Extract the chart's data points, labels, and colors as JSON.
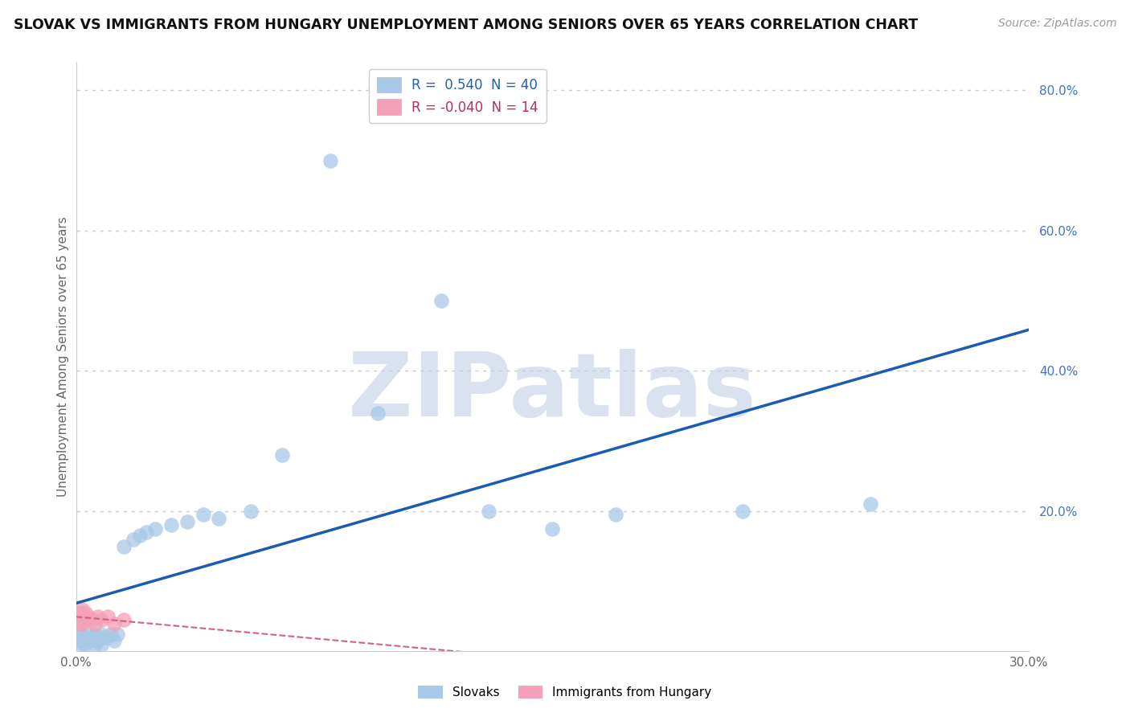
{
  "title": "SLOVAK VS IMMIGRANTS FROM HUNGARY UNEMPLOYMENT AMONG SENIORS OVER 65 YEARS CORRELATION CHART",
  "source": "Source: ZipAtlas.com",
  "ylabel": "Unemployment Among Seniors over 65 years",
  "xlim": [
    0.0,
    0.3
  ],
  "ylim": [
    0.0,
    0.84
  ],
  "x_tick_positions": [
    0.0,
    0.05,
    0.1,
    0.15,
    0.2,
    0.25,
    0.3
  ],
  "x_tick_labels": [
    "0.0%",
    "",
    "",
    "",
    "",
    "",
    "30.0%"
  ],
  "y_ticks_right": [
    0.8,
    0.6,
    0.4,
    0.2
  ],
  "y_tick_labels_right": [
    "80.0%",
    "60.0%",
    "40.0%",
    "20.0%"
  ],
  "r_slovak": 0.54,
  "n_slovak": 40,
  "r_hungary": -0.04,
  "n_hungary": 14,
  "color_slovak": "#a8c8e8",
  "color_hungary": "#f4a0b8",
  "line_color_slovak": "#1a5cb0",
  "line_color_hungary": "#d06080",
  "background_color": "#ffffff",
  "grid_color": "#cccccc",
  "watermark": "ZIPatlas",
  "watermark_color_zip": "#c0d0e4",
  "watermark_color_atlas": "#8fb8d8",
  "slovak_x": [
    0.001,
    0.001,
    0.002,
    0.002,
    0.003,
    0.003,
    0.004,
    0.004,
    0.005,
    0.005,
    0.006,
    0.006,
    0.007,
    0.007,
    0.008,
    0.008,
    0.009,
    0.01,
    0.011,
    0.012,
    0.013,
    0.015,
    0.018,
    0.02,
    0.022,
    0.025,
    0.03,
    0.035,
    0.04,
    0.045,
    0.055,
    0.065,
    0.08,
    0.095,
    0.115,
    0.13,
    0.15,
    0.17,
    0.21,
    0.25
  ],
  "slovak_y": [
    0.02,
    0.015,
    0.025,
    0.01,
    0.02,
    0.01,
    0.015,
    0.025,
    0.02,
    0.015,
    0.025,
    0.01,
    0.02,
    0.015,
    0.025,
    0.01,
    0.02,
    0.02,
    0.025,
    0.015,
    0.025,
    0.15,
    0.16,
    0.165,
    0.17,
    0.175,
    0.18,
    0.185,
    0.195,
    0.19,
    0.2,
    0.28,
    0.7,
    0.34,
    0.5,
    0.2,
    0.175,
    0.195,
    0.2,
    0.21
  ],
  "hungary_x": [
    0.001,
    0.001,
    0.002,
    0.002,
    0.003,
    0.003,
    0.004,
    0.005,
    0.006,
    0.007,
    0.008,
    0.01,
    0.012,
    0.015
  ],
  "hungary_y": [
    0.04,
    0.055,
    0.04,
    0.06,
    0.045,
    0.055,
    0.05,
    0.045,
    0.04,
    0.05,
    0.045,
    0.05,
    0.04,
    0.045
  ]
}
